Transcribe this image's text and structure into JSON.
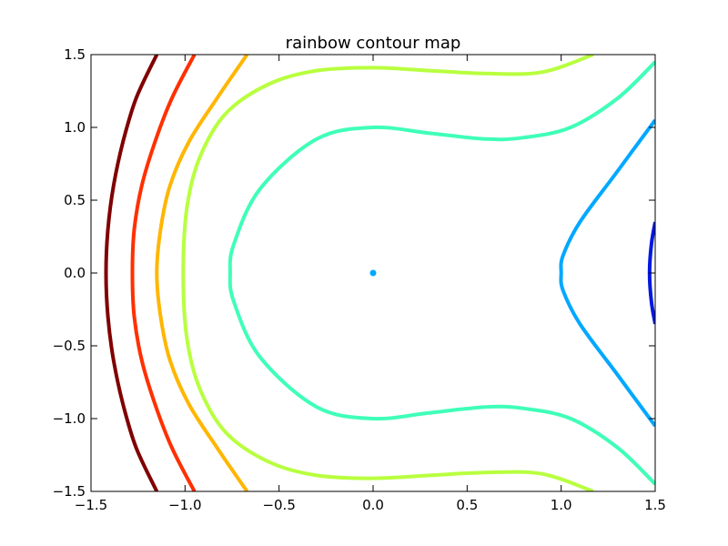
{
  "chart_data": {
    "type": "contour",
    "title": "rainbow contour map",
    "xlabel": "",
    "ylabel": "",
    "xlim": [
      -1.5,
      1.5
    ],
    "ylim": [
      -1.5,
      1.5
    ],
    "x_ticks": [
      -1.5,
      -1.0,
      -0.5,
      0.0,
      0.5,
      1.0,
      1.5
    ],
    "x_tick_labels": [
      "−1.5",
      "−1.0",
      "−0.5",
      "0.0",
      "0.5",
      "1.0",
      "1.5"
    ],
    "y_ticks": [
      1.5,
      1.0,
      0.5,
      0.0,
      -0.5,
      -1.0,
      -1.5
    ],
    "y_tick_labels": [
      "1.5",
      "1.0",
      "0.5",
      "0.0",
      "−0.5",
      "−1.0",
      "−1.5"
    ],
    "grid": false,
    "legend": "none",
    "colormap": "jet",
    "contours": [
      {
        "color": "#800000",
        "points": [
          [
            -1.15,
            1.5
          ],
          [
            -1.26,
            1.2
          ],
          [
            -1.33,
            0.9
          ],
          [
            -1.38,
            0.6
          ],
          [
            -1.41,
            0.3
          ],
          [
            -1.42,
            0.0
          ],
          [
            -1.41,
            -0.3
          ],
          [
            -1.38,
            -0.6
          ],
          [
            -1.33,
            -0.9
          ],
          [
            -1.26,
            -1.2
          ],
          [
            -1.15,
            -1.5
          ]
        ]
      },
      {
        "color": "#ff3000",
        "points": [
          [
            -0.95,
            1.5
          ],
          [
            -1.07,
            1.2
          ],
          [
            -1.16,
            0.9
          ],
          [
            -1.23,
            0.6
          ],
          [
            -1.27,
            0.3
          ],
          [
            -1.28,
            0.0
          ],
          [
            -1.27,
            -0.3
          ],
          [
            -1.23,
            -0.6
          ],
          [
            -1.16,
            -0.9
          ],
          [
            -1.07,
            -1.2
          ],
          [
            -0.95,
            -1.5
          ]
        ]
      },
      {
        "color": "#ffb600",
        "points": [
          [
            -0.67,
            1.5
          ],
          [
            -0.83,
            1.2
          ],
          [
            -0.98,
            0.9
          ],
          [
            -1.08,
            0.6
          ],
          [
            -1.13,
            0.3
          ],
          [
            -1.15,
            0.0
          ],
          [
            -1.13,
            -0.3
          ],
          [
            -1.08,
            -0.6
          ],
          [
            -0.98,
            -0.9
          ],
          [
            -0.83,
            -1.2
          ],
          [
            -0.67,
            -1.5
          ]
        ]
      },
      {
        "color": "#b8ff3f",
        "points": [
          [
            1.17,
            1.5
          ],
          [
            0.9,
            1.38
          ],
          [
            0.6,
            1.37
          ],
          [
            0.3,
            1.39
          ],
          [
            0.0,
            1.41
          ],
          [
            -0.3,
            1.39
          ],
          [
            -0.55,
            1.3
          ],
          [
            -0.78,
            1.1
          ],
          [
            -0.92,
            0.8
          ],
          [
            -0.99,
            0.45
          ],
          [
            -1.01,
            0.0
          ],
          [
            -0.99,
            -0.45
          ],
          [
            -0.92,
            -0.8
          ],
          [
            -0.78,
            -1.1
          ],
          [
            -0.55,
            -1.3
          ],
          [
            -0.3,
            -1.39
          ],
          [
            0.0,
            -1.41
          ],
          [
            0.3,
            -1.39
          ],
          [
            0.6,
            -1.37
          ],
          [
            0.9,
            -1.38
          ],
          [
            1.17,
            -1.5
          ]
        ]
      },
      {
        "color": "#3fffb8",
        "points": [
          [
            1.5,
            1.45
          ],
          [
            1.3,
            1.2
          ],
          [
            1.05,
            1.0
          ],
          [
            0.8,
            0.93
          ],
          [
            0.6,
            0.92
          ],
          [
            0.3,
            0.96
          ],
          [
            0.0,
            1.0
          ],
          [
            -0.3,
            0.92
          ],
          [
            -0.6,
            0.58
          ],
          [
            -0.74,
            0.2
          ],
          [
            -0.76,
            0.0
          ],
          [
            -0.74,
            -0.2
          ],
          [
            -0.6,
            -0.58
          ],
          [
            -0.3,
            -0.92
          ],
          [
            0.0,
            -1.0
          ],
          [
            0.3,
            -0.96
          ],
          [
            0.6,
            -0.92
          ],
          [
            0.8,
            -0.93
          ],
          [
            1.05,
            -1.0
          ],
          [
            1.3,
            -1.2
          ],
          [
            1.5,
            -1.45
          ]
        ]
      },
      {
        "color": "#00a8ff",
        "points": [
          [
            1.5,
            1.05
          ],
          [
            1.3,
            0.7
          ],
          [
            1.1,
            0.35
          ],
          [
            1.01,
            0.12
          ],
          [
            1.0,
            0.0
          ],
          [
            1.01,
            -0.12
          ],
          [
            1.1,
            -0.35
          ],
          [
            1.3,
            -0.7
          ],
          [
            1.5,
            -1.05
          ]
        ]
      },
      {
        "color": "#0018e0",
        "points": [
          [
            1.5,
            0.35
          ],
          [
            1.48,
            0.2
          ],
          [
            1.47,
            0.0
          ],
          [
            1.48,
            -0.2
          ],
          [
            1.5,
            -0.35
          ]
        ]
      }
    ],
    "markers": [
      {
        "x": 0.0,
        "y": 0.0,
        "color": "#00a8ff"
      }
    ]
  }
}
